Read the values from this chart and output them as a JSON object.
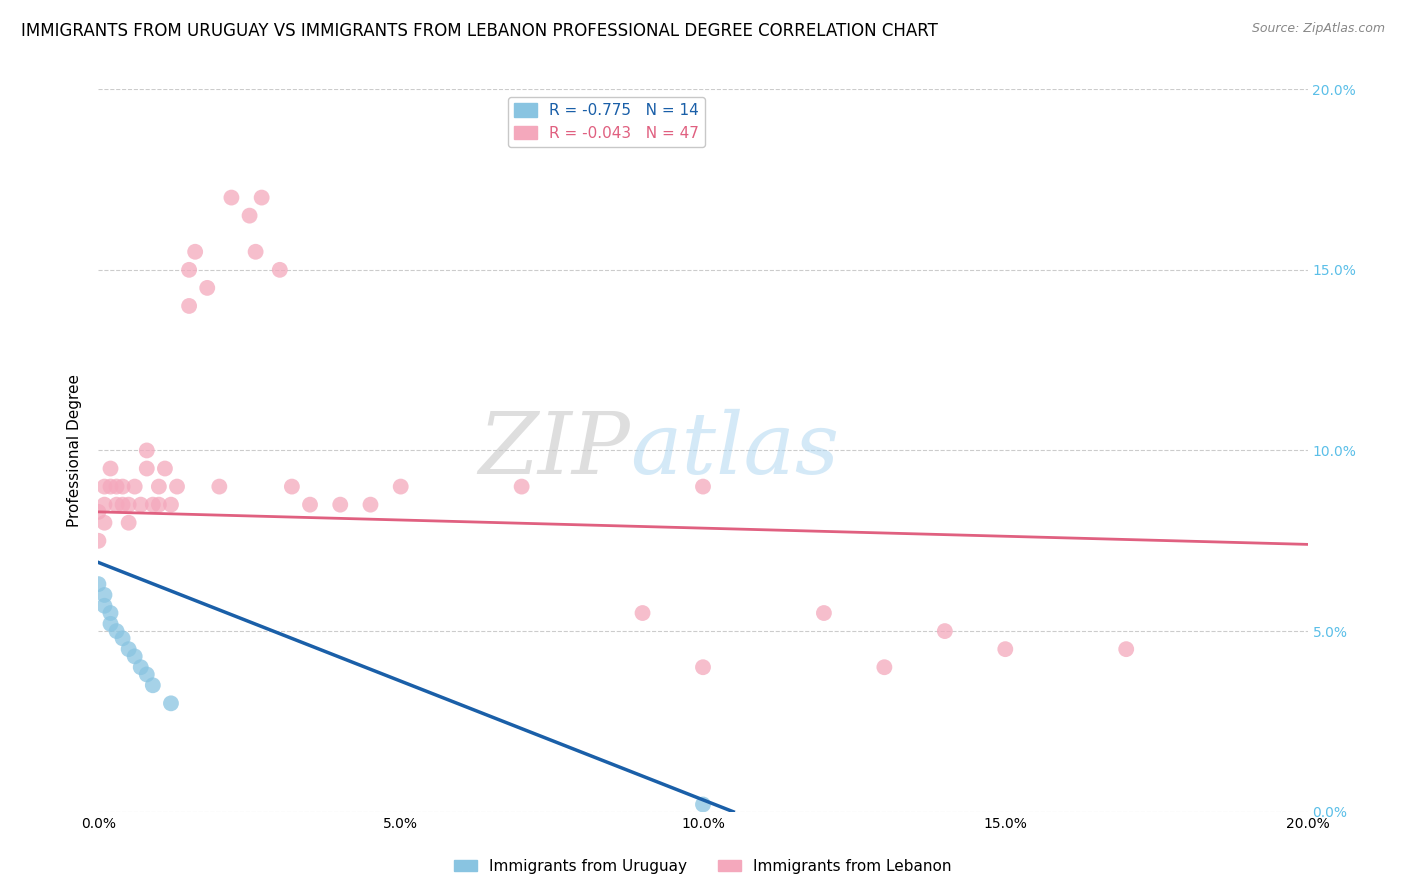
{
  "title": "IMMIGRANTS FROM URUGUAY VS IMMIGRANTS FROM LEBANON PROFESSIONAL DEGREE CORRELATION CHART",
  "source": "Source: ZipAtlas.com",
  "ylabel": "Professional Degree",
  "xlim": [
    0.0,
    0.2
  ],
  "ylim": [
    0.0,
    0.2
  ],
  "xticks": [
    0.0,
    0.05,
    0.1,
    0.15,
    0.2
  ],
  "yticks": [
    0.0,
    0.05,
    0.1,
    0.15,
    0.2
  ],
  "xticklabels": [
    "0.0%",
    "5.0%",
    "10.0%",
    "15.0%",
    "20.0%"
  ],
  "yticklabels": [
    "0.0%",
    "5.0%",
    "10.0%",
    "15.0%",
    "20.0%"
  ],
  "watermark_left": "ZIP",
  "watermark_right": "atlas",
  "uruguay_color": "#89c4e1",
  "lebanon_color": "#f4a8bc",
  "uruguay_line_color": "#1a5fa8",
  "lebanon_line_color": "#e06080",
  "uruguay_R": -0.775,
  "uruguay_N": 14,
  "lebanon_R": -0.043,
  "lebanon_N": 47,
  "uruguay_x": [
    0.0,
    0.001,
    0.001,
    0.002,
    0.002,
    0.003,
    0.004,
    0.005,
    0.006,
    0.007,
    0.008,
    0.009,
    0.012,
    0.1
  ],
  "uruguay_y": [
    0.063,
    0.06,
    0.057,
    0.055,
    0.052,
    0.05,
    0.048,
    0.045,
    0.043,
    0.04,
    0.038,
    0.035,
    0.03,
    0.002
  ],
  "lebanon_x": [
    0.0,
    0.0,
    0.001,
    0.001,
    0.001,
    0.002,
    0.002,
    0.003,
    0.003,
    0.004,
    0.004,
    0.005,
    0.005,
    0.006,
    0.007,
    0.008,
    0.008,
    0.009,
    0.01,
    0.01,
    0.011,
    0.012,
    0.013,
    0.015,
    0.015,
    0.016,
    0.018,
    0.02,
    0.022,
    0.025,
    0.026,
    0.027,
    0.03,
    0.032,
    0.035,
    0.04,
    0.045,
    0.05,
    0.07,
    0.09,
    0.1,
    0.1,
    0.12,
    0.13,
    0.14,
    0.15,
    0.17
  ],
  "lebanon_y": [
    0.083,
    0.075,
    0.09,
    0.085,
    0.08,
    0.09,
    0.095,
    0.085,
    0.09,
    0.085,
    0.09,
    0.085,
    0.08,
    0.09,
    0.085,
    0.095,
    0.1,
    0.085,
    0.09,
    0.085,
    0.095,
    0.085,
    0.09,
    0.14,
    0.15,
    0.155,
    0.145,
    0.09,
    0.17,
    0.165,
    0.155,
    0.17,
    0.15,
    0.09,
    0.085,
    0.085,
    0.085,
    0.09,
    0.09,
    0.055,
    0.04,
    0.09,
    0.055,
    0.04,
    0.05,
    0.045,
    0.045
  ],
  "lebanon_line_x": [
    0.0,
    0.2
  ],
  "lebanon_line_y": [
    0.083,
    0.074
  ],
  "uruguay_line_x": [
    0.0,
    0.105
  ],
  "uruguay_line_y": [
    0.069,
    0.0
  ],
  "background_color": "#ffffff",
  "grid_color": "#cccccc",
  "right_ytick_color": "#5bbfe8",
  "title_fontsize": 12,
  "label_fontsize": 11,
  "tick_fontsize": 10,
  "marker_size": 130,
  "legend_fontsize": 11
}
